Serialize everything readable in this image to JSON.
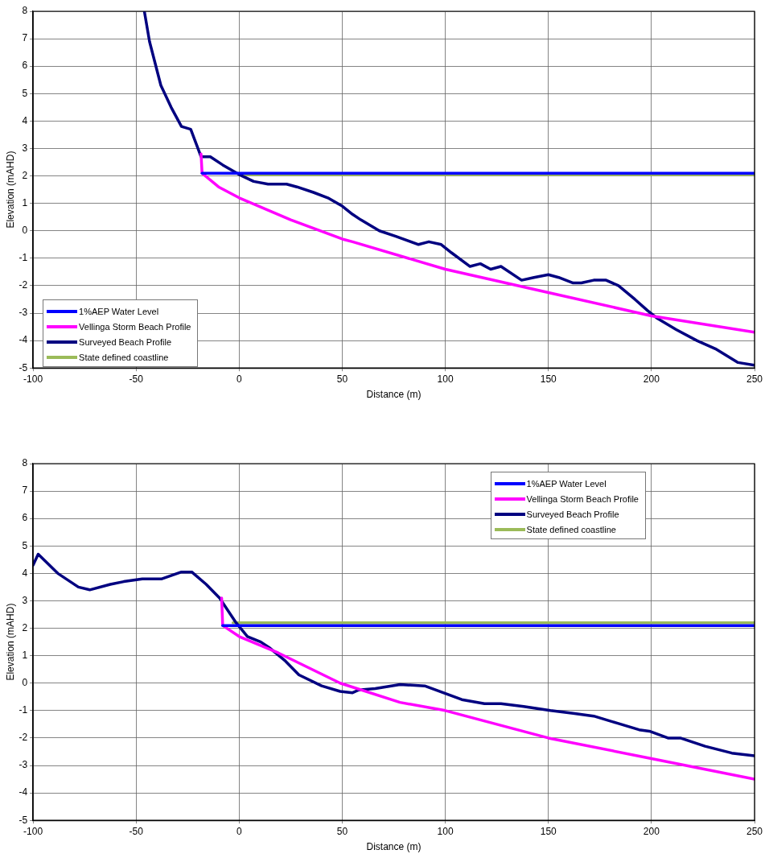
{
  "chart_data": [
    {
      "type": "line",
      "xlabel": "Distance (m)",
      "ylabel": "Elevation (mAHD)",
      "xlim": [
        -100,
        250
      ],
      "xticks": [
        -100,
        -50,
        0,
        50,
        100,
        150,
        200,
        250
      ],
      "ylim": [
        -5,
        8
      ],
      "yticks": [
        -5,
        -4,
        -3,
        -2,
        -1,
        0,
        1,
        2,
        3,
        4,
        5,
        6,
        7,
        8
      ],
      "grid": true,
      "legend": "bottom left",
      "marker": "none",
      "line_style": "solid",
      "series": [
        {
          "name": "1%AEP Water Level",
          "color": "#0000ff",
          "x": [
            -18,
            250
          ],
          "values": [
            2.1,
            2.1
          ]
        },
        {
          "name": "Vellinga Storm Beach Profile",
          "color": "#ff00ff",
          "x": [
            -18.5,
            -18,
            -10,
            0,
            25,
            50,
            55,
            100,
            150,
            200,
            250
          ],
          "values": [
            2.8,
            2.1,
            1.6,
            1.2,
            0.4,
            -0.3,
            -0.4,
            -1.4,
            -2.25,
            -3.1,
            -3.7
          ]
        },
        {
          "name": "Surveyed Beach Profile",
          "color": "#000080",
          "x": [
            -46,
            -43.5,
            -38,
            -33,
            -28,
            -23.5,
            -21,
            -18.5,
            -14,
            -8,
            0,
            7,
            14,
            23,
            28,
            36,
            43,
            50,
            55,
            59,
            68,
            76,
            87,
            92,
            98,
            103,
            112,
            117,
            122,
            127,
            137,
            143,
            150,
            155,
            162,
            166,
            172,
            178,
            184,
            192,
            198,
            203,
            212,
            222,
            231,
            242,
            250
          ],
          "values": [
            8,
            6.9,
            5.3,
            4.5,
            3.8,
            3.7,
            3.2,
            2.7,
            2.7,
            2.4,
            2.05,
            1.8,
            1.7,
            1.7,
            1.6,
            1.4,
            1.2,
            0.9,
            0.6,
            0.4,
            0.0,
            -0.2,
            -0.5,
            -0.4,
            -0.5,
            -0.8,
            -1.3,
            -1.2,
            -1.4,
            -1.3,
            -1.8,
            -1.7,
            -1.6,
            -1.7,
            -1.9,
            -1.9,
            -1.8,
            -1.8,
            -2.0,
            -2.5,
            -2.9,
            -3.2,
            -3.6,
            -4.0,
            -4.3,
            -4.8,
            -4.9
          ]
        },
        {
          "name": "State defined coastline",
          "color": "#9bbb59",
          "x": [
            0,
            250
          ],
          "values": [
            2.05,
            2.05
          ]
        }
      ]
    },
    {
      "type": "line",
      "xlabel": "Distance (m)",
      "ylabel": "Elevation (mAHD)",
      "xlim": [
        -100,
        250
      ],
      "xticks": [
        -100,
        -50,
        0,
        50,
        100,
        150,
        200,
        250
      ],
      "ylim": [
        -5,
        8
      ],
      "yticks": [
        -5,
        -4,
        -3,
        -2,
        -1,
        0,
        1,
        2,
        3,
        4,
        5,
        6,
        7,
        8
      ],
      "grid": true,
      "legend": "top right",
      "marker": "none",
      "line_style": "solid",
      "series": [
        {
          "name": "1%AEP Water Level",
          "color": "#0000ff",
          "x": [
            -8,
            250
          ],
          "values": [
            2.1,
            2.1
          ]
        },
        {
          "name": "Vellinga Storm Beach Profile",
          "color": "#ff00ff",
          "x": [
            -8.5,
            -8,
            0,
            19,
            49,
            78,
            100,
            150,
            200,
            250
          ],
          "values": [
            3.1,
            2.1,
            1.7,
            1.1,
            0.0,
            -0.7,
            -1.0,
            -2.0,
            -2.75,
            -3.5
          ]
        },
        {
          "name": "Surveyed Beach Profile",
          "color": "#000080",
          "x": [
            -100,
            -97.5,
            -88,
            -78,
            -72.5,
            -62.5,
            -56,
            -47,
            -37.5,
            -28,
            -23,
            -16,
            -9.5,
            -1.5,
            4,
            10.5,
            14.5,
            22.5,
            29,
            40,
            49,
            55,
            58,
            66,
            78,
            90,
            99,
            108,
            119,
            127,
            138,
            151,
            162,
            172,
            183,
            194,
            199,
            208,
            214,
            226,
            239,
            250
          ],
          "values": [
            4.3,
            4.7,
            4.0,
            3.5,
            3.4,
            3.6,
            3.7,
            3.8,
            3.8,
            4.05,
            4.05,
            3.6,
            3.1,
            2.2,
            1.7,
            1.5,
            1.3,
            0.8,
            0.3,
            -0.1,
            -0.3,
            -0.35,
            -0.25,
            -0.2,
            -0.05,
            -0.1,
            -0.35,
            -0.6,
            -0.75,
            -0.75,
            -0.85,
            -1.0,
            -1.1,
            -1.2,
            -1.45,
            -1.7,
            -1.75,
            -2.0,
            -2.0,
            -2.3,
            -2.55,
            -2.65
          ]
        },
        {
          "name": "State defined coastline",
          "color": "#9bbb59",
          "x": [
            -3,
            250
          ],
          "values": [
            2.2,
            2.2
          ]
        }
      ]
    }
  ]
}
